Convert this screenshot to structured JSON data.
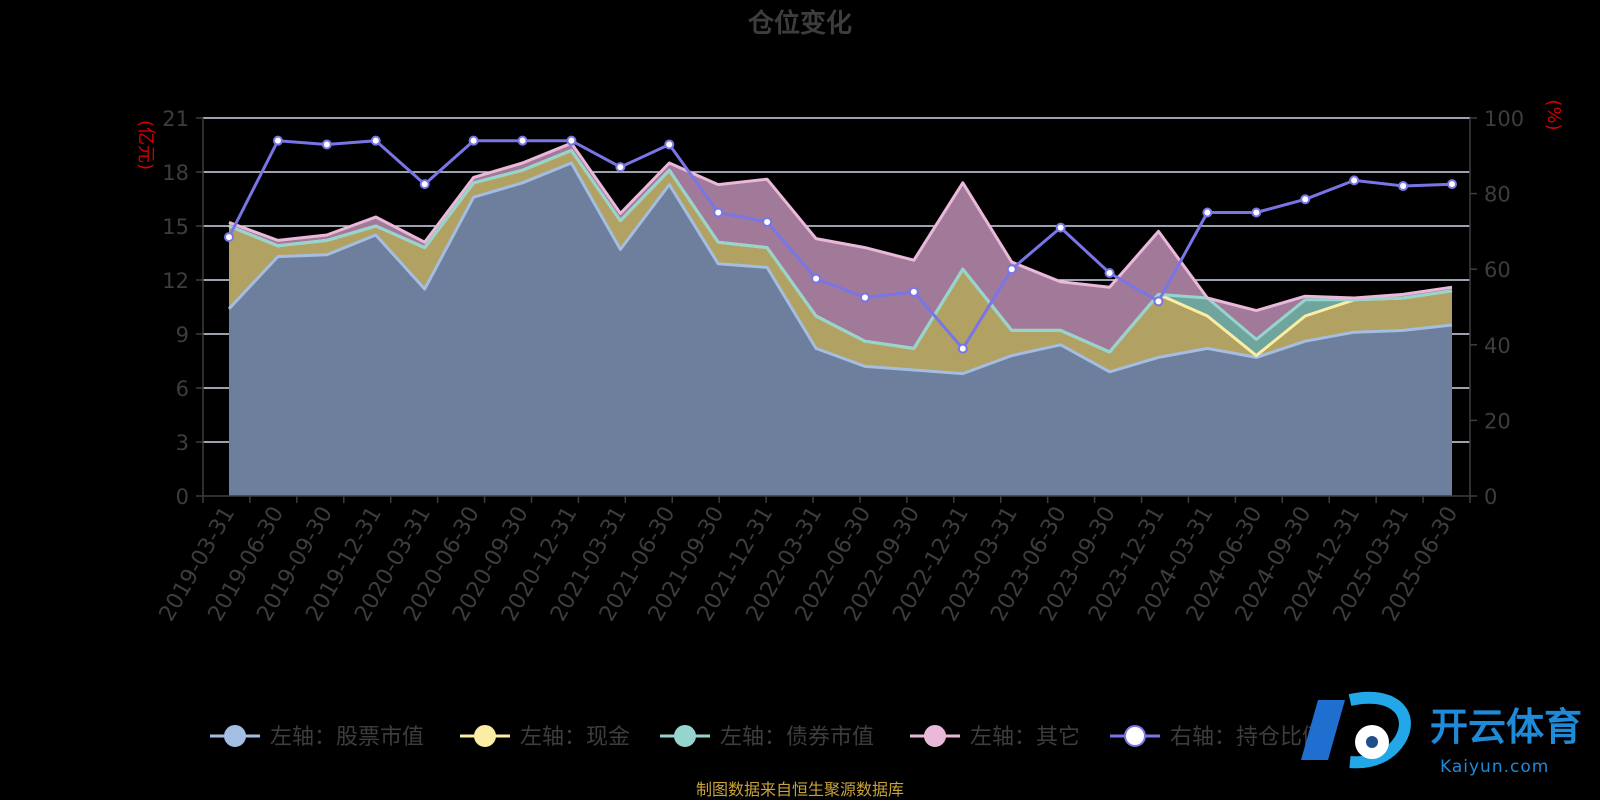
{
  "source_note": "制图数据来自恒生聚源数据库",
  "watermark": {
    "cn": "开云体育",
    "en": "Kaiyun.com"
  },
  "colors": {
    "stock": "#a3bde3",
    "stock_fill": "#6d7f9c",
    "cash": "#fbeda3",
    "cash_fill": "#b1a263",
    "bond": "#96d4cf",
    "bond_fill": "#6fa59c",
    "other": "#eab9d9",
    "other_fill": "#a07a98",
    "ratio": "#7a75e6",
    "grid": "#cfd8e8",
    "axis": "#3d3d3d",
    "unit": "#d40000"
  },
  "chart_data": {
    "type": "area",
    "title": "仓位变化",
    "left_unit": "(亿元)",
    "right_unit": "(%)",
    "ylim_left": [
      0,
      21
    ],
    "yticks_left": [
      0,
      3,
      6,
      9,
      12,
      15,
      18,
      21
    ],
    "ylim_right": [
      0,
      100
    ],
    "yticks_right": [
      0,
      20,
      40,
      60,
      80,
      100
    ],
    "stacked": true,
    "categories": [
      "2019-03-31",
      "2019-06-30",
      "2019-09-30",
      "2019-12-31",
      "2020-03-31",
      "2020-06-30",
      "2020-09-30",
      "2020-12-31",
      "2021-03-31",
      "2021-06-30",
      "2021-09-30",
      "2021-12-31",
      "2022-03-31",
      "2022-06-30",
      "2022-09-30",
      "2022-12-31",
      "2023-03-31",
      "2023-06-30",
      "2023-09-30",
      "2023-12-31",
      "2024-03-31",
      "2024-06-30",
      "2024-09-30",
      "2024-12-31",
      "2025-03-31",
      "2025-06-30"
    ],
    "series": [
      {
        "name": "左轴：股票市值",
        "axis": "left",
        "values": [
          10.4,
          13.3,
          13.4,
          14.5,
          11.5,
          16.6,
          17.4,
          18.5,
          13.7,
          17.3,
          12.9,
          12.7,
          8.2,
          7.2,
          7.0,
          6.8,
          7.8,
          8.4,
          6.9,
          7.7,
          8.2,
          7.7,
          8.6,
          9.1,
          9.2,
          9.5
        ]
      },
      {
        "name": "左轴：现金",
        "axis": "left",
        "values": [
          4.6,
          0.6,
          0.8,
          0.5,
          2.3,
          0.8,
          0.7,
          0.7,
          1.6,
          0.8,
          1.2,
          1.1,
          1.8,
          1.4,
          1.2,
          5.8,
          1.4,
          0.8,
          1.1,
          3.5,
          1.8,
          0.1,
          1.4,
          1.8,
          1.8,
          1.9
        ]
      },
      {
        "name": "左轴：债券市值",
        "axis": "left",
        "values": [
          0,
          0,
          0,
          0,
          0,
          0,
          0,
          0,
          0,
          0,
          0,
          0,
          0,
          0,
          0,
          0,
          0,
          0,
          0,
          0,
          1.0,
          0.9,
          0.9,
          0,
          0,
          0
        ]
      },
      {
        "name": "左轴：其它",
        "axis": "left",
        "values": [
          0.2,
          0.3,
          0.3,
          0.5,
          0.3,
          0.3,
          0.4,
          0.4,
          0.4,
          0.4,
          3.2,
          3.8,
          4.3,
          5.2,
          4.9,
          4.8,
          3.8,
          2.7,
          3.6,
          3.5,
          0,
          1.6,
          0.2,
          0.1,
          0.2,
          0.2
        ]
      },
      {
        "name": "右轴：持仓比例",
        "axis": "right",
        "type": "line",
        "values": [
          68.5,
          94,
          93,
          94,
          82.5,
          94,
          94,
          94,
          87,
          93,
          75,
          72.5,
          57.5,
          52.5,
          54,
          39,
          60,
          71,
          59,
          51.5,
          75,
          75,
          78.5,
          83.5,
          82,
          82.5
        ]
      }
    ],
    "legend_position": "bottom",
    "grid": true
  }
}
